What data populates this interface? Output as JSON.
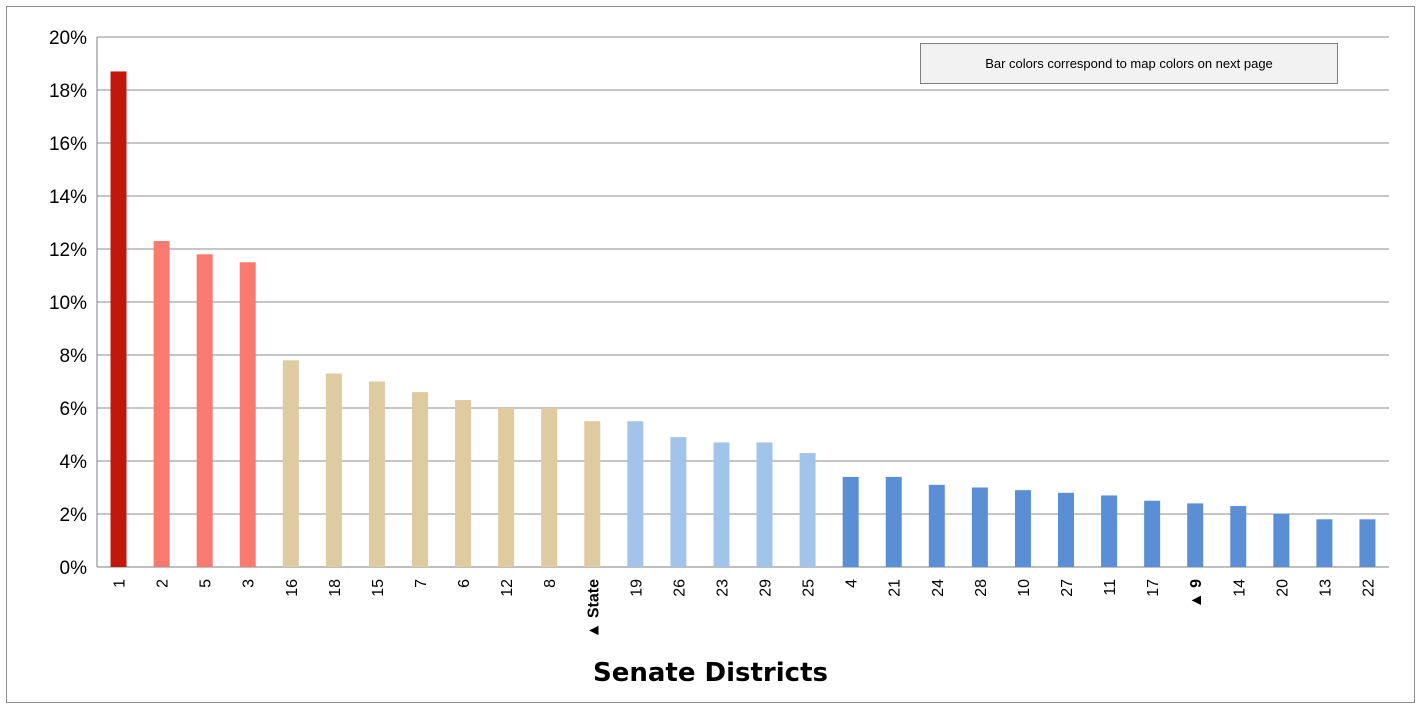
{
  "chart_data": {
    "type": "bar",
    "title": "",
    "xlabel": "Senate Districts",
    "ylabel": "",
    "ylim": [
      0,
      0.2
    ],
    "y_ticks": [
      "0%",
      "2%",
      "4%",
      "6%",
      "8%",
      "10%",
      "12%",
      "14%",
      "16%",
      "18%",
      "20%"
    ],
    "grid": true,
    "annotation": "Bar colors correspond to map colors on next page",
    "categories": [
      "1",
      "2",
      "5",
      "3",
      "16",
      "18",
      "15",
      "7",
      "6",
      "12",
      "8",
      "State",
      "19",
      "26",
      "23",
      "29",
      "25",
      "4",
      "21",
      "24",
      "28",
      "10",
      "27",
      "11",
      "17",
      "9",
      "14",
      "20",
      "13",
      "22"
    ],
    "values": [
      0.187,
      0.123,
      0.118,
      0.115,
      0.078,
      0.073,
      0.07,
      0.066,
      0.063,
      0.06,
      0.06,
      0.055,
      0.055,
      0.049,
      0.047,
      0.047,
      0.043,
      0.034,
      0.034,
      0.031,
      0.03,
      0.029,
      0.028,
      0.027,
      0.025,
      0.024,
      0.023,
      0.02,
      0.018,
      0.018
    ],
    "bar_colors": [
      "#c0190b",
      "#fa7a6f",
      "#fa7a6f",
      "#fa7a6f",
      "#dfcba0",
      "#dfcba0",
      "#dfcba0",
      "#dfcba0",
      "#dfcba0",
      "#dfcba0",
      "#dfcba0",
      "#dfcba0",
      "#a3c4ea",
      "#a3c4ea",
      "#a3c4ea",
      "#a3c4ea",
      "#a3c4ea",
      "#5a8fd6",
      "#5a8fd6",
      "#5a8fd6",
      "#5a8fd6",
      "#5a8fd6",
      "#5a8fd6",
      "#5a8fd6",
      "#5a8fd6",
      "#5a8fd6",
      "#5a8fd6",
      "#5a8fd6",
      "#5a8fd6",
      "#5a8fd6"
    ],
    "highlights": [
      {
        "category": "State",
        "marker": "▲",
        "color": "#17306b",
        "bold": true
      },
      {
        "category": "9",
        "marker": "▲",
        "color": "#c0190b",
        "bold": true
      }
    ]
  }
}
